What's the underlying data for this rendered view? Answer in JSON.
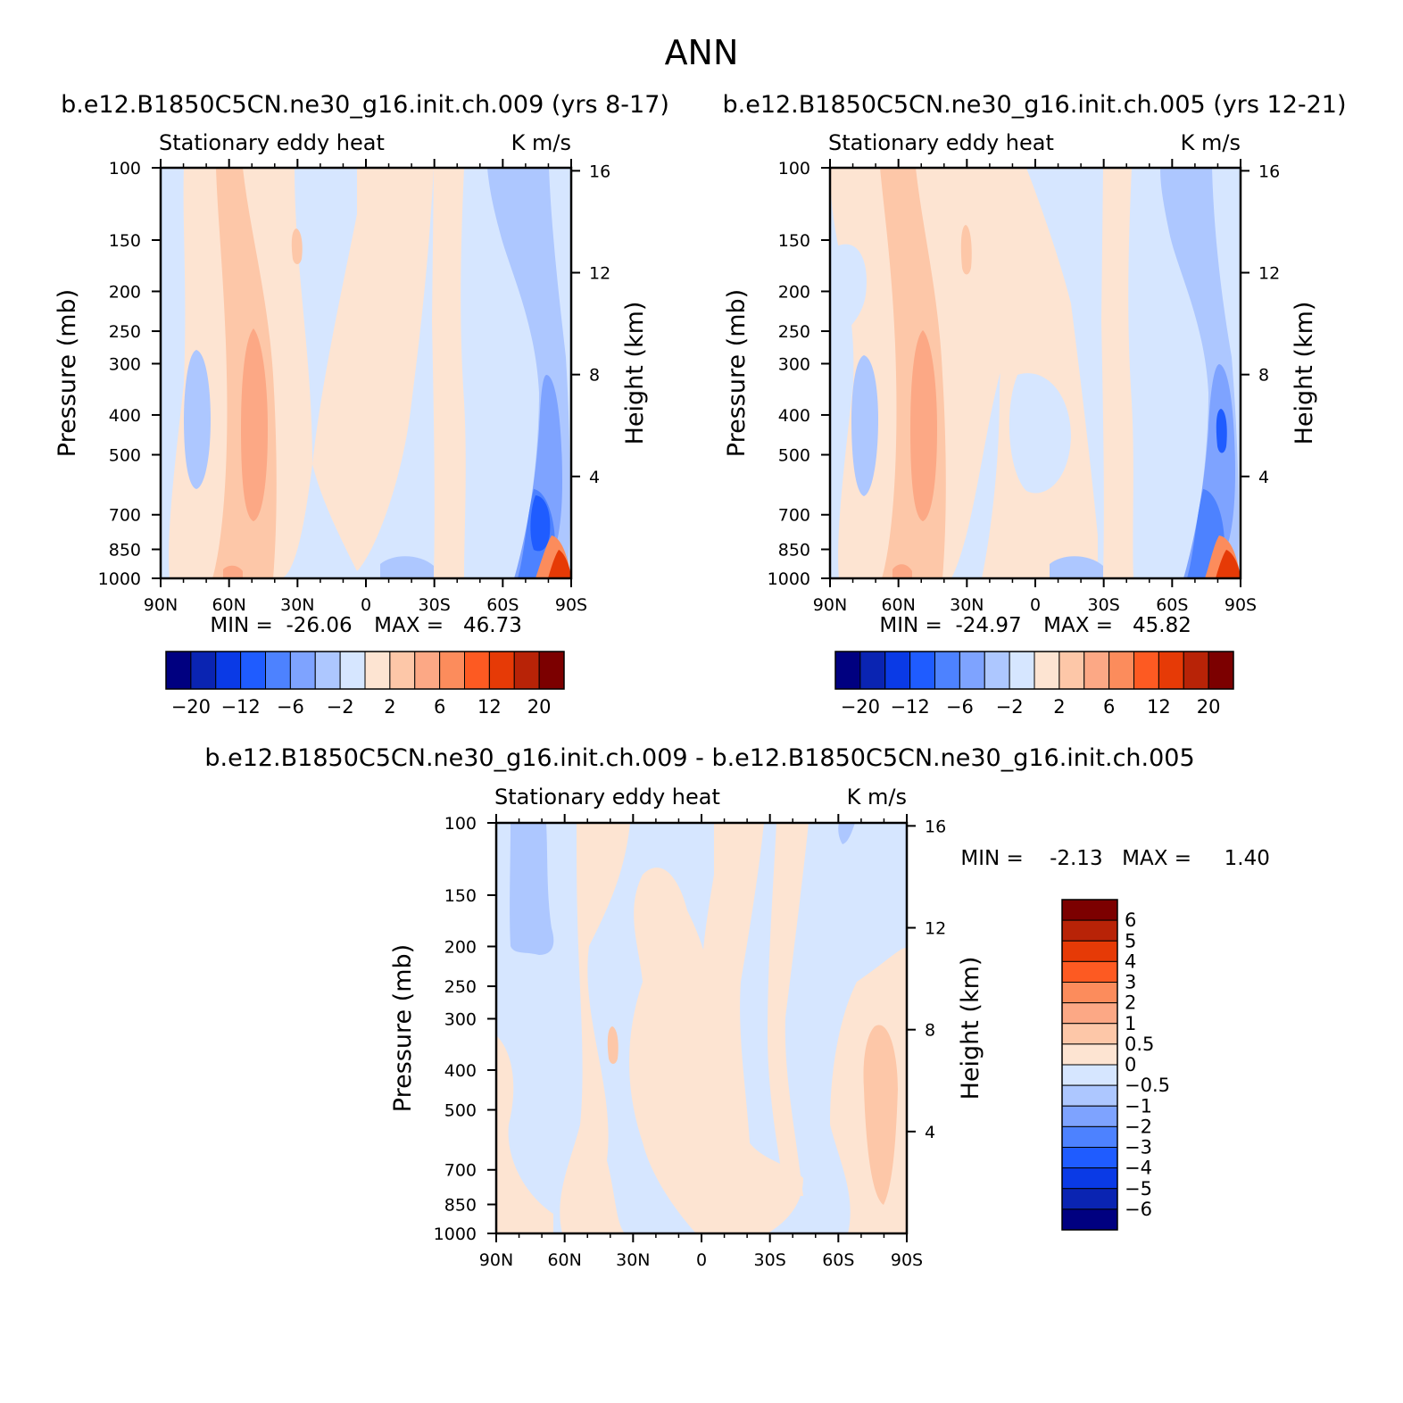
{
  "figure": {
    "title": "ANN"
  },
  "colors": {
    "neg_panel": [
      "#000080",
      "#0a24b2",
      "#0a3ae6",
      "#1f5cff",
      "#4d82ff",
      "#7ea3ff",
      "#adc7ff",
      "#d6e6ff"
    ],
    "pos_panel": [
      "#fde4d2",
      "#fdc7a8",
      "#fca885",
      "#fc8c5c",
      "#fd5a22",
      "#e63a06",
      "#b82307",
      "#7c0000"
    ]
  },
  "chart_data": [
    {
      "type": "contour",
      "case": "b.e12.B1850C5CN.ne30_g16.init.ch.009 (yrs 8-17)",
      "left_label": "Stationary eddy heat",
      "right_label": "K m/s",
      "xlabel": "",
      "ylabel": "Pressure (mb)",
      "ylabel_right": "Height (km)",
      "x_ticks": [
        "90N",
        "60N",
        "30N",
        "0",
        "30S",
        "60S",
        "90S"
      ],
      "y_ticks": [
        100,
        150,
        200,
        250,
        300,
        400,
        500,
        700,
        850,
        1000
      ],
      "y_ticks_right": [
        16,
        12,
        8,
        4
      ],
      "ylim": [
        1000,
        100
      ],
      "y_scale": "log",
      "min_text": "MIN =  -26.06",
      "max_text": "MAX =   46.73",
      "min": -26.06,
      "max": 46.73,
      "colorbar": {
        "orientation": "horizontal",
        "levels": [
          -20,
          -16,
          -12,
          -8,
          -6,
          -4,
          -2,
          0,
          2,
          4,
          6,
          8,
          12,
          16,
          20
        ],
        "labels": [
          "-20",
          "-12",
          "-6",
          "-2",
          "2",
          "6",
          "12",
          "20"
        ]
      }
    },
    {
      "type": "contour",
      "case": "b.e12.B1850C5CN.ne30_g16.init.ch.005 (yrs 12-21)",
      "left_label": "Stationary eddy heat",
      "right_label": "K m/s",
      "xlabel": "",
      "ylabel": "Pressure (mb)",
      "ylabel_right": "Height (km)",
      "x_ticks": [
        "90N",
        "60N",
        "30N",
        "0",
        "30S",
        "60S",
        "90S"
      ],
      "y_ticks": [
        100,
        150,
        200,
        250,
        300,
        400,
        500,
        700,
        850,
        1000
      ],
      "y_ticks_right": [
        16,
        12,
        8,
        4
      ],
      "ylim": [
        1000,
        100
      ],
      "y_scale": "log",
      "min_text": "MIN =  -24.97",
      "max_text": "MAX =   45.82",
      "min": -24.97,
      "max": 45.82,
      "colorbar": {
        "orientation": "horizontal",
        "levels": [
          -20,
          -16,
          -12,
          -8,
          -6,
          -4,
          -2,
          0,
          2,
          4,
          6,
          8,
          12,
          16,
          20
        ],
        "labels": [
          "-20",
          "-12",
          "-6",
          "-2",
          "2",
          "6",
          "12",
          "20"
        ]
      }
    },
    {
      "type": "contour",
      "case": "b.e12.B1850C5CN.ne30_g16.init.ch.009 - b.e12.B1850C5CN.ne30_g16.init.ch.005",
      "left_label": "Stationary eddy heat",
      "right_label": "K m/s",
      "xlabel": "",
      "ylabel": "Pressure (mb)",
      "ylabel_right": "Height (km)",
      "x_ticks": [
        "90N",
        "60N",
        "30N",
        "0",
        "30S",
        "60S",
        "90S"
      ],
      "y_ticks": [
        100,
        150,
        200,
        250,
        300,
        400,
        500,
        700,
        850,
        1000
      ],
      "y_ticks_right": [
        16,
        12,
        8,
        4
      ],
      "ylim": [
        1000,
        100
      ],
      "y_scale": "log",
      "min_text": "MIN =    -2.13",
      "max_text": "MAX =     1.40",
      "min": -2.13,
      "max": 1.4,
      "colorbar": {
        "orientation": "vertical",
        "levels": [
          -6,
          -5,
          -4,
          -3,
          -2,
          -1,
          -0.5,
          0,
          0.5,
          1,
          2,
          3,
          4,
          5,
          6
        ],
        "labels": [
          "6",
          "5",
          "4",
          "3",
          "2",
          "1",
          "0.5",
          "0",
          "-0.5",
          "-1",
          "-2",
          "-3",
          "-4",
          "-5",
          "-6"
        ]
      }
    }
  ]
}
